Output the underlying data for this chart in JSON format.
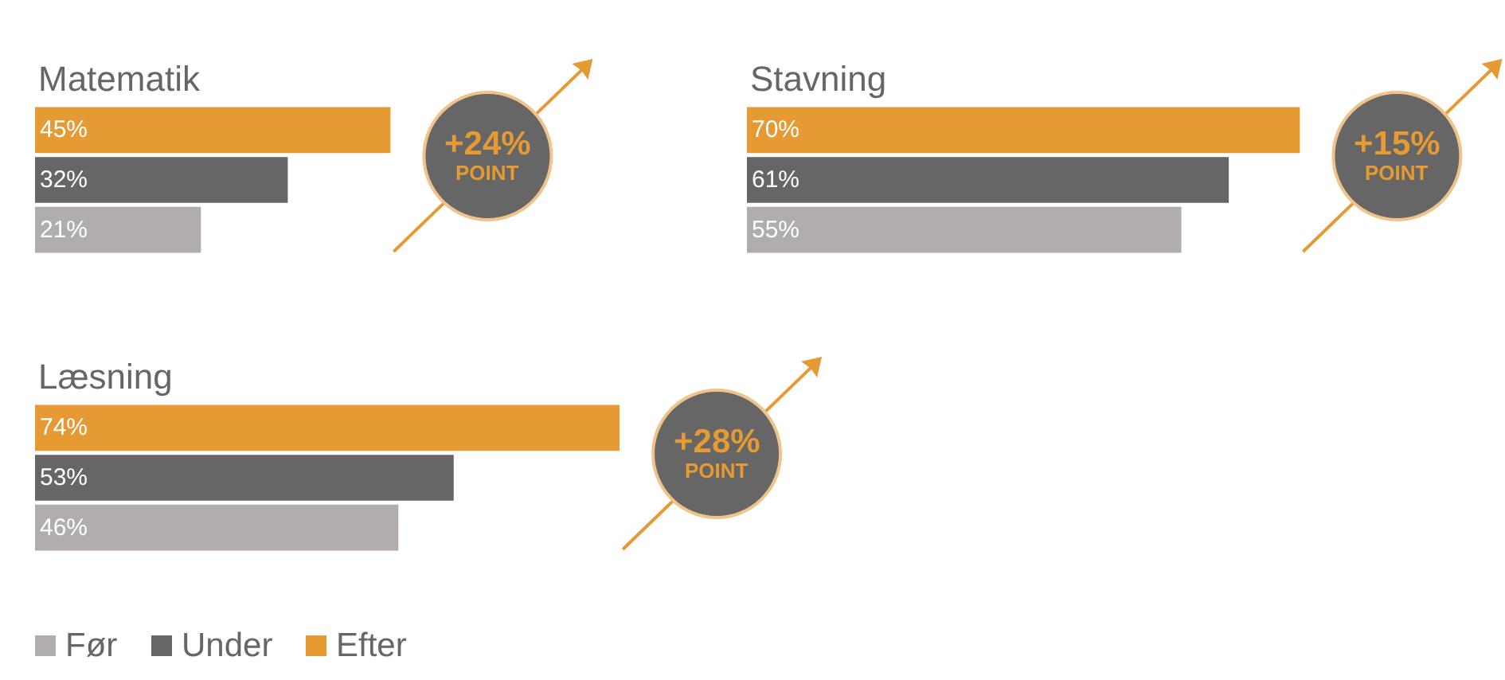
{
  "chart_data": [
    {
      "type": "bar",
      "orientation": "horizontal",
      "title": "Matematik",
      "categories": [
        null,
        null,
        null
      ],
      "series": [
        {
          "colors": [
            "#e59a33",
            "#666666",
            "#b0adac"
          ],
          "values": [
            45,
            32,
            21
          ],
          "value_labels": [
            "45%",
            "32%",
            "21%"
          ]
        }
      ],
      "annotations": [
        "+24%",
        "POINT"
      ]
    },
    {
      "type": "bar",
      "orientation": "horizontal",
      "title": "Stavning",
      "categories": [
        null,
        null,
        null
      ],
      "series": [
        {
          "colors": [
            "#e59a33",
            "#666666",
            "#b0adac"
          ],
          "values": [
            70,
            61,
            55
          ],
          "value_labels": [
            "70%",
            "61%",
            "55%"
          ]
        }
      ],
      "annotations": [
        "+15%",
        "POINT"
      ]
    },
    {
      "type": "bar",
      "orientation": "horizontal",
      "title": "Læsning",
      "categories": [
        null,
        null,
        null
      ],
      "series": [
        {
          "colors": [
            "#e59a33",
            "#666666",
            "#b0adac"
          ],
          "values": [
            74,
            53,
            46
          ],
          "value_labels": [
            "74%",
            "53%",
            "46%"
          ]
        }
      ],
      "annotations": [
        "+28%",
        "POINT"
      ]
    },
    {
      "type": "other",
      "categories": [
        "Før",
        "Under",
        "Efter"
      ],
      "colors": [
        "#b0adac",
        "#666666",
        "#e59a33"
      ]
    }
  ]
}
